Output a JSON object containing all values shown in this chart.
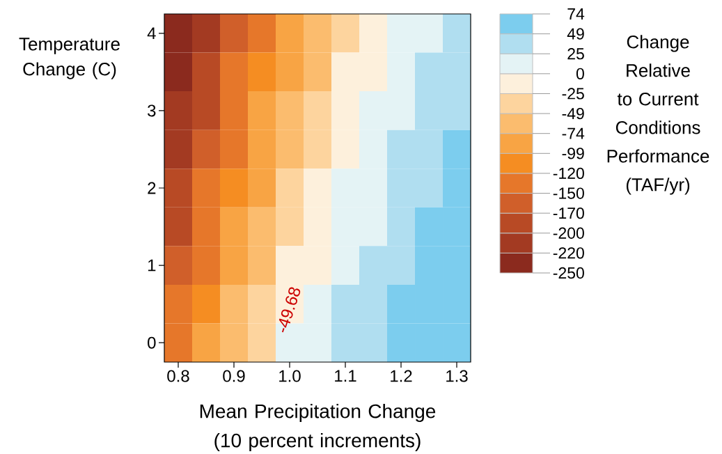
{
  "chart_data": {
    "type": "heatmap",
    "xlabel": "Mean Precipitation Change (10 percent increments)",
    "ylabel": "Temperature Change (C)",
    "clabel": "Change Relative to Current Conditions Performance (TAF/yr)",
    "categories": [
      "0.8",
      null,
      "0.9",
      null,
      "1.0",
      null,
      "1.1",
      null,
      "1.2",
      null,
      "1.3"
    ],
    "y_categories": [
      "4",
      null,
      "3",
      null,
      "2",
      null,
      "1",
      null,
      "0"
    ],
    "cells": [
      [
        -243,
        -201,
        -160,
        -126,
        -89,
        -60,
        -33,
        -11,
        7,
        21,
        36
      ],
      [
        -229,
        -187,
        -148,
        -110,
        -78,
        -50,
        -24,
        -4,
        13,
        27,
        41
      ],
      [
        -216,
        -174,
        -135,
        -98,
        -67,
        -41,
        -17,
        3,
        20,
        34,
        45
      ],
      [
        -202,
        -161,
        -126,
        -87,
        -56,
        -31,
        -8,
        10,
        26,
        40,
        50
      ],
      [
        -188,
        -149,
        -110,
        -76,
        -45,
        -21,
        0,
        17,
        33,
        46,
        55
      ],
      [
        -174,
        -136,
        -98,
        -64,
        -33,
        -11,
        8,
        24,
        39,
        52,
        59
      ],
      [
        -161,
        -126,
        -86,
        -53,
        -22,
        -2,
        17,
        31,
        45,
        59,
        64
      ],
      [
        -147,
        -110,
        -73,
        -41,
        -11,
        8,
        25,
        38,
        52,
        65,
        68
      ],
      [
        -126,
        -97,
        -61,
        -30,
        0,
        18,
        33,
        45,
        58,
        71,
        73
      ]
    ],
    "cticks": [
      -250,
      -220,
      -200,
      -170,
      -150,
      -120,
      -99,
      -74,
      -49,
      -25,
      0,
      25,
      49,
      74
    ],
    "colors": [
      "#8b2a1e",
      "#a33a22",
      "#b84a25",
      "#d05f2a",
      "#e6772a",
      "#f58d22",
      "#f8a444",
      "#fbbc6e",
      "#fdd49e",
      "#fdf0dc",
      "#e4f3f5",
      "#b0def0",
      "#7ccdee"
    ],
    "annotations": [
      "-49.68"
    ]
  }
}
